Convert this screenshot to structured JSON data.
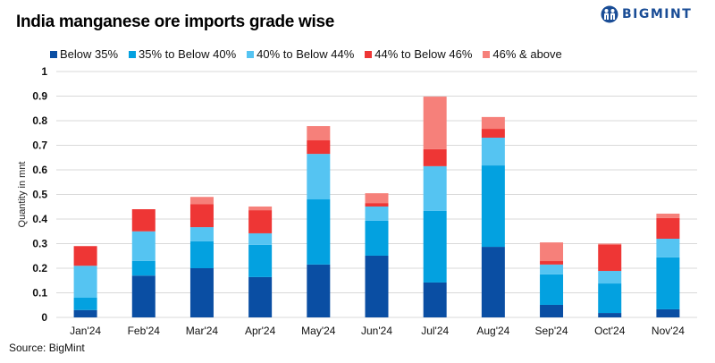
{
  "header": {
    "title": "India manganese ore imports grade wise",
    "logo_text": "BIGMINT",
    "logo_icon": "people-icon"
  },
  "source": "Source: BigMint",
  "chart_data": {
    "type": "bar",
    "stacked": true,
    "title": "India manganese ore imports grade wise",
    "xlabel": "",
    "ylabel": "Quantity in mnt",
    "ylim": [
      0,
      1
    ],
    "yticks": [
      "0",
      "0.1",
      "0.2",
      "0.3",
      "0.4",
      "0.5",
      "0.6",
      "0.7",
      "0.8",
      "0.9",
      "1"
    ],
    "grid": true,
    "legend_position": "top",
    "categories": [
      "Jan'24",
      "Feb'24",
      "Mar'24",
      "Apr'24",
      "May'24",
      "Jun'24",
      "Jul'24",
      "Aug'24",
      "Sep'24",
      "Oct'24",
      "Nov'24"
    ],
    "series": [
      {
        "name": "Below 35%",
        "color": "#0a4ea3",
        "values": [
          0.03,
          0.17,
          0.2,
          0.164,
          0.215,
          0.251,
          0.142,
          0.287,
          0.051,
          0.018,
          0.033
        ]
      },
      {
        "name": "35% to Below 40%",
        "color": "#03a1e0",
        "values": [
          0.05,
          0.06,
          0.11,
          0.131,
          0.265,
          0.142,
          0.291,
          0.331,
          0.124,
          0.12,
          0.211
        ]
      },
      {
        "name": "40% to Below 44%",
        "color": "#55c4f2",
        "values": [
          0.13,
          0.12,
          0.057,
          0.047,
          0.185,
          0.058,
          0.182,
          0.113,
          0.04,
          0.051,
          0.076
        ]
      },
      {
        "name": "44% to Below 46%",
        "color": "#ee3635",
        "values": [
          0.08,
          0.09,
          0.093,
          0.094,
          0.055,
          0.014,
          0.069,
          0.036,
          0.014,
          0.107,
          0.084
        ]
      },
      {
        "name": "46% & above",
        "color": "#f6807a",
        "values": [
          0.0,
          0.0,
          0.03,
          0.015,
          0.058,
          0.04,
          0.214,
          0.048,
          0.076,
          0.004,
          0.018
        ]
      }
    ]
  }
}
